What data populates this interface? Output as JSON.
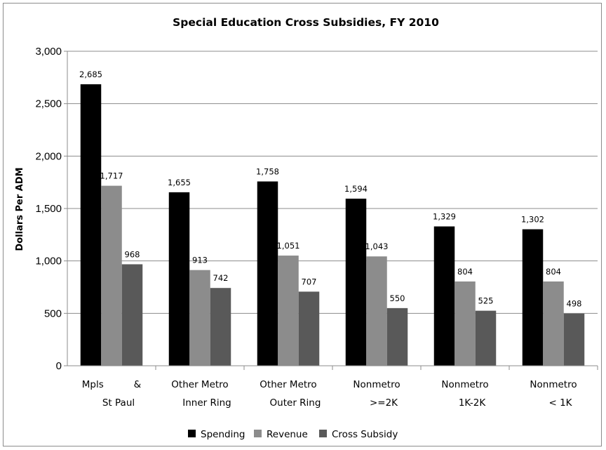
{
  "chart_data": {
    "type": "bar",
    "title": "Special Education Cross Subsidies, FY 2010",
    "ylabel": "Dollars Per ADM",
    "xlabel": "",
    "ylim": [
      0,
      3000
    ],
    "yticks": [
      0,
      500,
      1000,
      1500,
      2000,
      2500,
      3000
    ],
    "ytick_labels": [
      "0",
      "500",
      "1,000",
      "1,500",
      "2,000",
      "2,500",
      "3,000"
    ],
    "grid": true,
    "legend_position": "bottom",
    "categories": [
      {
        "line1": "Mpls          &",
        "line2": "St Paul"
      },
      {
        "line1": "Other Metro",
        "line2": "Inner Ring"
      },
      {
        "line1": "Other Metro",
        "line2": "Outer Ring"
      },
      {
        "line1": "Nonmetro",
        "line2": ">=2K"
      },
      {
        "line1": "Nonmetro",
        "line2": "1K-2K"
      },
      {
        "line1": "Nonmetro",
        "line2": "< 1K"
      }
    ],
    "series": [
      {
        "name": "Spending",
        "color": "#000000",
        "values": [
          2685,
          1655,
          1758,
          1594,
          1329,
          1302
        ],
        "labels": [
          "2,685",
          "1,655",
          "1,758",
          "1,594",
          "1,329",
          "1,302"
        ]
      },
      {
        "name": "Revenue",
        "color": "#8c8c8c",
        "values": [
          1717,
          913,
          1051,
          1043,
          804,
          804
        ],
        "labels": [
          "1,717",
          "913",
          "1,051",
          "1,043",
          "804",
          "804"
        ]
      },
      {
        "name": "Cross Subsidy",
        "color": "#595959",
        "values": [
          968,
          742,
          707,
          550,
          525,
          498
        ],
        "labels": [
          "968",
          "742",
          "707",
          "550",
          "525",
          "498"
        ]
      }
    ]
  }
}
